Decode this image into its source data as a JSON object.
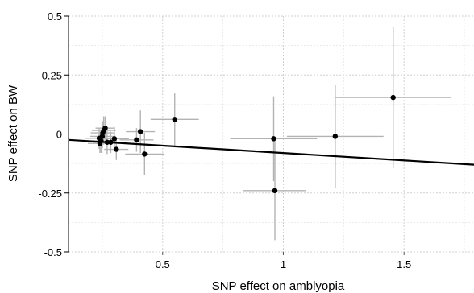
{
  "chart_data": {
    "type": "scatter",
    "xlabel": "SNP effect on amblyopia",
    "ylabel": "SNP effect on BW",
    "xlim": [
      0.11,
      1.79
    ],
    "ylim": [
      -0.5,
      0.5
    ],
    "x_ticks": [
      0.5,
      1,
      1.5
    ],
    "x_tick_labels": [
      "0.5",
      "1",
      "1.5"
    ],
    "y_ticks": [
      -0.5,
      -0.25,
      0,
      0.25,
      0.5
    ],
    "y_tick_labels": [
      "-0.5",
      "-0.25",
      "0",
      "0.25",
      "0.5"
    ],
    "x_minor_ticks": [
      0.25,
      0.75,
      1.25,
      1.75
    ],
    "y_minor_ticks": [
      -0.375,
      -0.125,
      0.125,
      0.375
    ],
    "grid": true,
    "legend": "none",
    "colors": {
      "points": "#000000",
      "error_bars": "#b3b3b3",
      "grid": "#d0d0d0",
      "fit_line": "#000000"
    },
    "points": [
      {
        "x": 0.237,
        "y": -0.018,
        "xerr": 0.06,
        "yerr": 0.045
      },
      {
        "x": 0.24,
        "y": -0.04,
        "xerr": 0.05,
        "yerr": 0.04
      },
      {
        "x": 0.245,
        "y": -0.03,
        "xerr": 0.06,
        "yerr": 0.05
      },
      {
        "x": 0.25,
        "y": -0.01,
        "xerr": 0.05,
        "yerr": 0.05
      },
      {
        "x": 0.252,
        "y": 0.005,
        "xerr": 0.05,
        "yerr": 0.05
      },
      {
        "x": 0.256,
        "y": 0.015,
        "xerr": 0.05,
        "yerr": 0.06
      },
      {
        "x": 0.262,
        "y": 0.025,
        "xerr": 0.04,
        "yerr": 0.05
      },
      {
        "x": 0.27,
        "y": -0.035,
        "xerr": 0.06,
        "yerr": 0.05
      },
      {
        "x": 0.285,
        "y": -0.035,
        "xerr": 0.05,
        "yerr": 0.045
      },
      {
        "x": 0.3,
        "y": -0.02,
        "xerr": 0.06,
        "yerr": 0.05
      },
      {
        "x": 0.308,
        "y": -0.065,
        "xerr": 0.05,
        "yerr": 0.045
      },
      {
        "x": 0.392,
        "y": -0.025,
        "xerr": 0.07,
        "yerr": 0.05
      },
      {
        "x": 0.408,
        "y": 0.01,
        "xerr": 0.06,
        "yerr": 0.09
      },
      {
        "x": 0.425,
        "y": -0.085,
        "xerr": 0.08,
        "yerr": 0.09
      },
      {
        "x": 0.55,
        "y": 0.062,
        "xerr": 0.1,
        "yerr": 0.11
      },
      {
        "x": 0.96,
        "y": -0.02,
        "xerr": 0.18,
        "yerr": 0.18
      },
      {
        "x": 0.965,
        "y": -0.24,
        "xerr": 0.13,
        "yerr": 0.21
      },
      {
        "x": 1.215,
        "y": -0.01,
        "xerr": 0.2,
        "yerr": 0.22
      },
      {
        "x": 1.455,
        "y": 0.155,
        "xerr": 0.24,
        "yerr": 0.3
      }
    ],
    "fit_line": {
      "x": [
        0.11,
        1.79
      ],
      "y": [
        -0.025,
        -0.13
      ]
    }
  }
}
